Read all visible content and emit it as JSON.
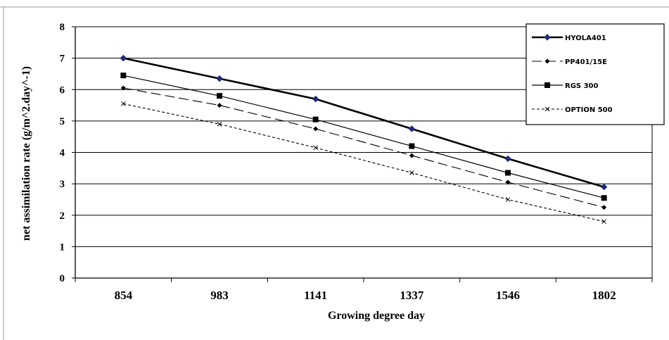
{
  "chart_data": {
    "type": "line",
    "categories": [
      "854",
      "983",
      "1141",
      "1337",
      "1546",
      "1802"
    ],
    "series": [
      {
        "name": "HYOLA401",
        "values": [
          7.0,
          6.35,
          5.7,
          4.75,
          3.8,
          2.9
        ],
        "color": "#000000",
        "marker": "diamond-blue",
        "dash": "solid-thick"
      },
      {
        "name": "PP401/15E",
        "values": [
          6.05,
          5.5,
          4.75,
          3.9,
          3.05,
          2.25
        ],
        "color": "#000000",
        "marker": "diamond",
        "dash": "long-dash"
      },
      {
        "name": "RGS 300",
        "values": [
          6.45,
          5.8,
          5.05,
          4.2,
          3.35,
          2.55
        ],
        "color": "#000000",
        "marker": "square",
        "dash": "solid-thin"
      },
      {
        "name": "OPTION 500",
        "values": [
          5.55,
          4.9,
          4.15,
          3.35,
          2.5,
          1.8
        ],
        "color": "#000000",
        "marker": "x",
        "dash": "short-dash"
      }
    ],
    "title": "",
    "xlabel": "Growing degree day",
    "ylabel": "net assimilation rate (g/m^2.day^-1)",
    "ylim": [
      0,
      8
    ],
    "yticks": [
      "0",
      "1",
      "2",
      "3",
      "4",
      "5",
      "6",
      "7",
      "8"
    ],
    "grid": "horizontal",
    "legend": "top-right",
    "marker_color": "#1f2a7a"
  }
}
